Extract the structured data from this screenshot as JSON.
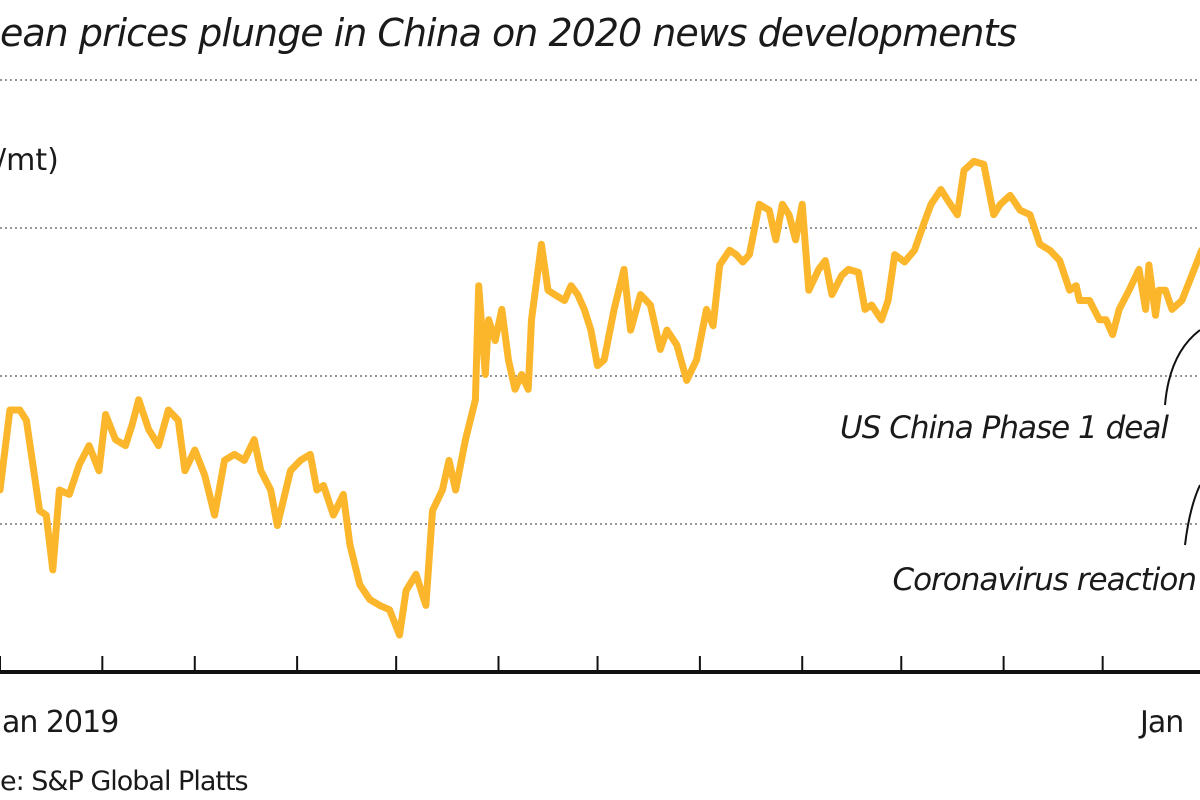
{
  "chart_data": {
    "type": "line",
    "title": "ean prices plunge in China on 2020 news developments",
    "ylabel": "/mt)",
    "source": "e: S&P Global Platts",
    "x_tick_labels": [
      {
        "date": "2019-01-01",
        "label": "an 2019"
      },
      {
        "date": "2020-01-01",
        "label": "Jan"
      }
    ],
    "x_month_ticks": [
      "2019-01-01",
      "2019-02-01",
      "2019-03-01",
      "2019-04-01",
      "2019-05-01",
      "2019-06-01",
      "2019-07-01",
      "2019-08-01",
      "2019-09-01",
      "2019-10-01",
      "2019-11-01",
      "2019-12-01"
    ],
    "y_gridlines": [
      1,
      2,
      3,
      4
    ],
    "ylim": [
      0,
      4
    ],
    "y_tick_labels_visible": false,
    "grid": "horizontal dotted",
    "line_color": "#FBB62B",
    "annotations": [
      {
        "text": "US China Phase 1 deal"
      },
      {
        "text": "Coronavirus reaction"
      }
    ],
    "series": [
      {
        "x": [
          "2019-01-01",
          "2019-01-04",
          "2019-01-07",
          "2019-01-09",
          "2019-01-13",
          "2019-01-15",
          "2019-01-17",
          "2019-01-19",
          "2019-01-22",
          "2019-01-25",
          "2019-01-28",
          "2019-01-31",
          "2019-02-02",
          "2019-02-05",
          "2019-02-08",
          "2019-02-10",
          "2019-02-12",
          "2019-02-15",
          "2019-02-18",
          "2019-02-21",
          "2019-02-24",
          "2019-02-26",
          "2019-03-01",
          "2019-03-04",
          "2019-03-07",
          "2019-03-10",
          "2019-03-13",
          "2019-03-16",
          "2019-03-19",
          "2019-03-21",
          "2019-03-24",
          "2019-03-26",
          "2019-03-30",
          "2019-04-02",
          "2019-04-05",
          "2019-04-07",
          "2019-04-09",
          "2019-04-12",
          "2019-04-15",
          "2019-04-17",
          "2019-04-20",
          "2019-04-23",
          "2019-04-26",
          "2019-04-29",
          "2019-05-02",
          "2019-05-04",
          "2019-05-07",
          "2019-05-10",
          "2019-05-12",
          "2019-05-15",
          "2019-05-17",
          "2019-05-19",
          "2019-05-22",
          "2019-05-25",
          "2019-05-26",
          "2019-05-28",
          "2019-05-29",
          "2019-05-31",
          "2019-06-02",
          "2019-06-04",
          "2019-06-06",
          "2019-06-08",
          "2019-06-10",
          "2019-06-11",
          "2019-06-14",
          "2019-06-16",
          "2019-06-18",
          "2019-06-21",
          "2019-06-23",
          "2019-06-25",
          "2019-06-27",
          "2019-06-29",
          "2019-07-01",
          "2019-07-03",
          "2019-07-06",
          "2019-07-09",
          "2019-07-11",
          "2019-07-14",
          "2019-07-17",
          "2019-07-20",
          "2019-07-22",
          "2019-07-25",
          "2019-07-28",
          "2019-07-31",
          "2019-08-03",
          "2019-08-05",
          "2019-08-07",
          "2019-08-10",
          "2019-08-12",
          "2019-08-14",
          "2019-08-16",
          "2019-08-19",
          "2019-08-22",
          "2019-08-24",
          "2019-08-26",
          "2019-08-28",
          "2019-08-30",
          "2019-09-01",
          "2019-09-03",
          "2019-09-06",
          "2019-09-08",
          "2019-09-10",
          "2019-09-13",
          "2019-09-15",
          "2019-09-18",
          "2019-09-20",
          "2019-09-22",
          "2019-09-25",
          "2019-09-27",
          "2019-09-29",
          "2019-10-02",
          "2019-10-05",
          "2019-10-08",
          "2019-10-10",
          "2019-10-13",
          "2019-10-15",
          "2019-10-18",
          "2019-10-20",
          "2019-10-23",
          "2019-10-26",
          "2019-10-29",
          "2019-10-31",
          "2019-11-03",
          "2019-11-06",
          "2019-11-09",
          "2019-11-12",
          "2019-11-15",
          "2019-11-18",
          "2019-11-21",
          "2019-11-23",
          "2019-11-24",
          "2019-11-27",
          "2019-11-30",
          "2019-12-02",
          "2019-12-04",
          "2019-12-06",
          "2019-12-09",
          "2019-12-12",
          "2019-12-14",
          "2019-12-15",
          "2019-12-17",
          "2019-12-18",
          "2019-12-20",
          "2019-12-22",
          "2019-12-25",
          "2019-12-28",
          "2019-12-31"
        ],
        "y": [
          1.23,
          1.77,
          1.77,
          1.7,
          1.09,
          1.06,
          0.69,
          1.23,
          1.2,
          1.4,
          1.53,
          1.36,
          1.74,
          1.57,
          1.53,
          1.67,
          1.84,
          1.64,
          1.53,
          1.77,
          1.7,
          1.36,
          1.5,
          1.33,
          1.06,
          1.43,
          1.47,
          1.43,
          1.57,
          1.36,
          1.23,
          0.99,
          1.36,
          1.43,
          1.47,
          1.23,
          1.26,
          1.06,
          1.2,
          0.86,
          0.59,
          0.49,
          0.45,
          0.42,
          0.25,
          0.55,
          0.66,
          0.45,
          1.09,
          1.23,
          1.43,
          1.23,
          1.57,
          1.84,
          2.61,
          2.01,
          2.38,
          2.24,
          2.45,
          2.11,
          1.91,
          2.01,
          1.91,
          2.38,
          2.89,
          2.58,
          2.55,
          2.51,
          2.61,
          2.55,
          2.45,
          2.31,
          2.07,
          2.11,
          2.45,
          2.72,
          2.31,
          2.55,
          2.48,
          2.18,
          2.31,
          2.21,
          1.97,
          2.11,
          2.45,
          2.34,
          2.75,
          2.85,
          2.82,
          2.77,
          2.82,
          3.16,
          3.12,
          2.92,
          3.16,
          3.09,
          2.92,
          3.16,
          2.58,
          2.72,
          2.78,
          2.55,
          2.68,
          2.72,
          2.7,
          2.45,
          2.48,
          2.38,
          2.51,
          2.82,
          2.77,
          2.85,
          3.04,
          3.16,
          3.26,
          3.19,
          3.09,
          3.39,
          3.45,
          3.43,
          3.09,
          3.16,
          3.22,
          3.12,
          3.09,
          2.89,
          2.85,
          2.78,
          2.58,
          2.61,
          2.51,
          2.51,
          2.38,
          2.38,
          2.28,
          2.45,
          2.58,
          2.72,
          2.45,
          2.75,
          2.41,
          2.58,
          2.58,
          2.45,
          2.51,
          2.68,
          2.85
        ]
      }
    ]
  }
}
